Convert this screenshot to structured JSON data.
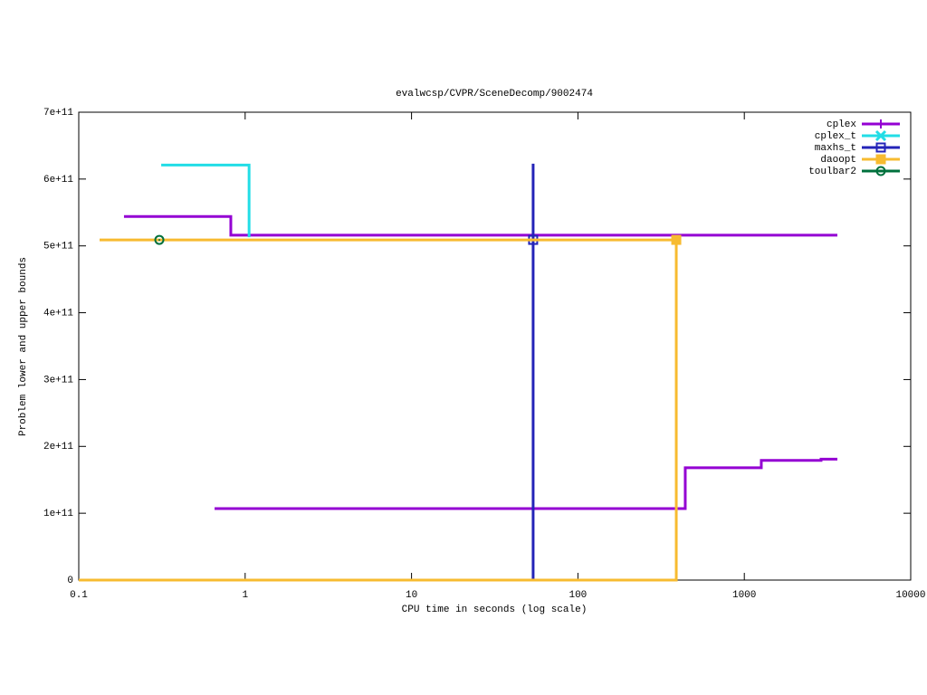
{
  "chart_data": {
    "type": "line",
    "title": "evalwcsp/CVPR/SceneDecomp/9002474",
    "x_label": "CPU time in seconds (log scale)",
    "y_label": "Problem lower and upper bounds",
    "xlog": true,
    "xlim": [
      0.1,
      10000
    ],
    "xticks": [
      0.1,
      1,
      10,
      100,
      1000,
      10000
    ],
    "ylim": [
      0,
      700000000000
    ],
    "yticks": [
      0,
      {
        "value": 100000000000,
        "label": "1e+11"
      },
      {
        "value": 200000000000,
        "label": "2e+11"
      },
      {
        "value": 300000000000,
        "label": "3e+11"
      },
      {
        "value": 400000000000,
        "label": "4e+11"
      },
      {
        "value": 500000000000,
        "label": "5e+11"
      },
      {
        "value": 600000000000,
        "label": "6e+11"
      },
      {
        "value": 700000000000,
        "label": "7e+11"
      }
    ],
    "legend": "top-right",
    "series": [
      {
        "name": "cplex",
        "color": "#9400d3",
        "marker": "plus",
        "x": [
          0.187,
          0.82,
          0.82,
          3624,
          null,
          0.655,
          441.6,
          441.6,
          1265,
          1265,
          2892,
          2892,
          3624
        ],
        "values": [
          544000000000,
          544000000000,
          516000000000,
          516000000000,
          null,
          107000000000,
          107000000000,
          168000000000,
          168000000000,
          179000000000,
          179000000000,
          181000000000,
          181000000000
        ],
        "points": {
          "x": [],
          "values": []
        }
      },
      {
        "name": "cplex_t",
        "color": "#22dde6",
        "marker": "cross",
        "x": [
          0.313,
          1.056,
          1.056
        ],
        "values": [
          621000000000,
          621000000000,
          513000000000
        ],
        "points": {
          "x": [],
          "values": []
        }
      },
      {
        "name": "maxhs_t",
        "color": "#2424b8",
        "marker": "square",
        "x": [
          53.8,
          53.8
        ],
        "values": [
          623000000000,
          0
        ],
        "points": {
          "x": [
            53.8
          ],
          "values": [
            509000000000
          ]
        }
      },
      {
        "name": "daoopt",
        "color": "#f7bb30",
        "marker": "filled-square",
        "x": [
          0.1334,
          390,
          390,
          0.1
        ],
        "values": [
          509000000000,
          509000000000,
          0,
          0
        ],
        "points": {
          "x": [
            390
          ],
          "values": [
            509000000000
          ]
        }
      },
      {
        "name": "toulbar2",
        "color": "#00703c",
        "marker": "circle",
        "x": [],
        "values": [],
        "points": {
          "x": [
            0.305
          ],
          "values": [
            509000000000
          ]
        }
      }
    ]
  }
}
